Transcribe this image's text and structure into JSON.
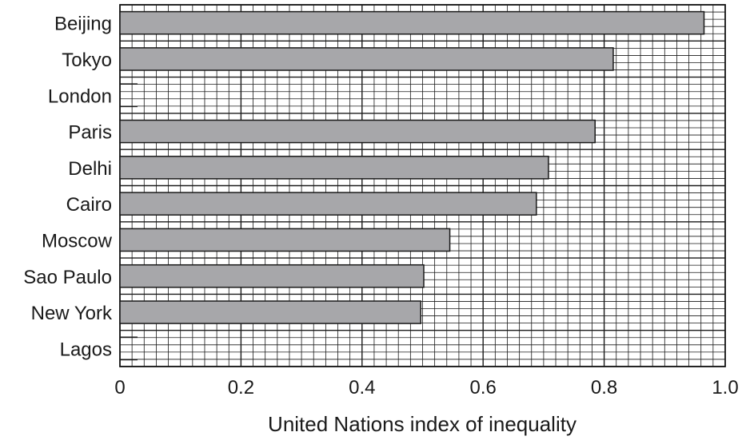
{
  "chart_data": {
    "type": "bar",
    "orientation": "horizontal",
    "categories": [
      "Beijing",
      "Tokyo",
      "London",
      "Paris",
      "Delhi",
      "Cairo",
      "Moscow",
      "Sao Paulo",
      "New York",
      "Lagos"
    ],
    "values": [
      0.965,
      0.815,
      null,
      0.785,
      0.708,
      0.688,
      0.545,
      0.502,
      0.497,
      null
    ],
    "title": "",
    "xlabel": "United Nations index of inequality",
    "ylabel": "",
    "xlim": [
      0,
      1.0
    ],
    "xticks": [
      "0",
      "0.2",
      "0.4",
      "0.6",
      "0.8",
      "1.0"
    ],
    "grid": true,
    "grid_minor_step": 0.02,
    "grid_major_step": 0.2,
    "legend": "none",
    "colors": {
      "bar_fill": "#a7a7aa",
      "bar_stroke": "#1a1a1a",
      "grid": "#1a1a1a",
      "background": "#ffffff"
    }
  }
}
